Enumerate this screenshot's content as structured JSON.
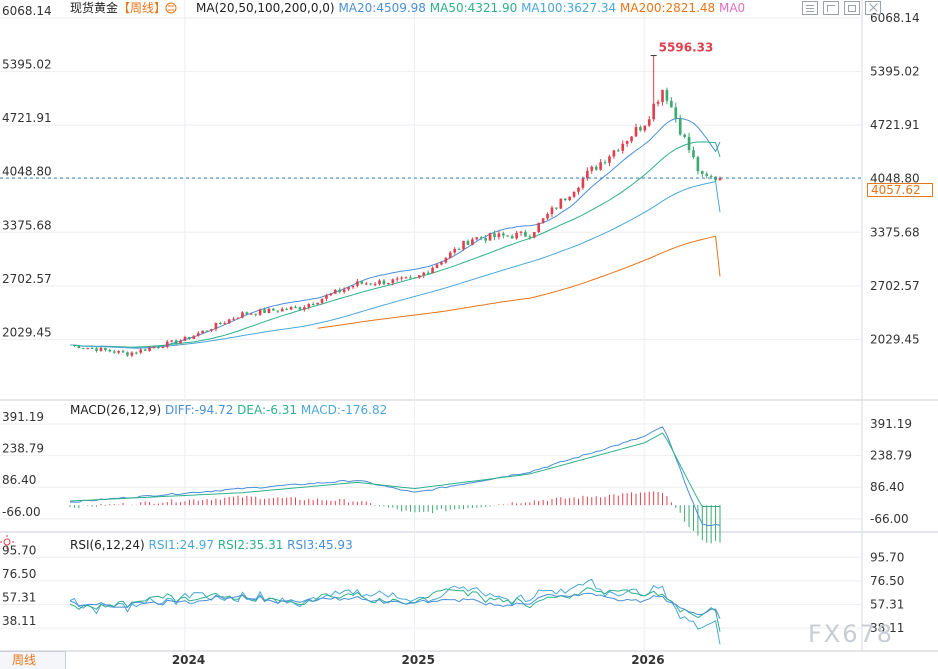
{
  "instrument": {
    "name": "现货黄金",
    "period": "【周线】"
  },
  "ma_header": {
    "label": "MA(20,50,100,200,0,0)",
    "items": [
      {
        "text": "MA20:4509.98",
        "color": "#4a8fd6"
      },
      {
        "text": "MA50:4321.90",
        "color": "#2eb08a"
      },
      {
        "text": "MA100:3627.34",
        "color": "#4aa8d8"
      },
      {
        "text": "MA200:2821.48",
        "color": "#e8751a"
      },
      {
        "text": "MA0",
        "color": "#e06fc0"
      }
    ]
  },
  "macd_header": {
    "label": "MACD(26,12,9)",
    "items": [
      {
        "text": "DIFF:-94.72",
        "color": "#4a8fd6"
      },
      {
        "text": "DEA:-6.31",
        "color": "#2eb08a"
      },
      {
        "text": "MACD:-176.82",
        "color": "#4aa8d8"
      }
    ]
  },
  "rsi_header": {
    "label": "RSI(6,12,24)",
    "items": [
      {
        "text": "RSI1:24.97",
        "color": "#4aa8d8"
      },
      {
        "text": "RSI2:35.31",
        "color": "#2eb08a"
      },
      {
        "text": "RSI3:45.93",
        "color": "#4a8fd6"
      }
    ]
  },
  "current_price": "4057.62",
  "peak_label": "5596.33",
  "bottom_tab": "周线",
  "watermark": "FX678",
  "icons": [
    "settings-icon",
    "reset-icon",
    "maximize-icon",
    "close-icon",
    "sun-icon"
  ],
  "colors": {
    "up": "#e0404e",
    "down": "#3caa6e",
    "accent": "#e8751a"
  },
  "chart_data": [
    {
      "type": "candlestick",
      "title": "现货黄金【周线】",
      "y_ticks": [
        "6068.14",
        "5395.02",
        "4721.91",
        "4048.80",
        "3375.68",
        "2702.57",
        "2029.45"
      ],
      "ylim": [
        1620,
        6068.14
      ],
      "x_ticks": [
        "2024",
        "2025",
        "2026"
      ],
      "grid": true,
      "key_points": [
        {
          "t": "2023-07",
          "close": 1960
        },
        {
          "t": "2023-10",
          "close": 1850
        },
        {
          "t": "2024-01",
          "close": 2030
        },
        {
          "t": "2024-04",
          "close": 2350
        },
        {
          "t": "2024-07",
          "close": 2430
        },
        {
          "t": "2024-10",
          "close": 2730
        },
        {
          "t": "2025-01",
          "close": 2780
        },
        {
          "t": "2025-04",
          "close": 3300
        },
        {
          "t": "2025-07",
          "close": 3350
        },
        {
          "t": "2025-10",
          "close": 4100
        },
        {
          "t": "2026-01",
          "close": 4750
        },
        {
          "t": "2026-02",
          "close": 5200
        },
        {
          "t": "2026-03",
          "close": 4600
        },
        {
          "t": "2026-04",
          "close": 4057.62
        }
      ],
      "peak": 5596.33,
      "last": 4057.62,
      "series": [
        {
          "name": "MA20",
          "value": 4509.98
        },
        {
          "name": "MA50",
          "value": 4321.9
        },
        {
          "name": "MA100",
          "value": 3627.34
        },
        {
          "name": "MA200",
          "value": 2821.48
        }
      ]
    },
    {
      "type": "line",
      "title": "MACD(26,12,9)",
      "y_ticks": [
        "391.19",
        "238.79",
        "86.40",
        "-66.00"
      ],
      "ylim": [
        -110,
        420
      ],
      "key_points": [
        {
          "t": "2023-07",
          "diff": 15,
          "dea": 20
        },
        {
          "t": "2024-04",
          "diff": 80,
          "dea": 60
        },
        {
          "t": "2024-10",
          "diff": 120,
          "dea": 110
        },
        {
          "t": "2025-01",
          "diff": 60,
          "dea": 80
        },
        {
          "t": "2025-07",
          "diff": 160,
          "dea": 150
        },
        {
          "t": "2026-01",
          "diff": 330,
          "dea": 300
        },
        {
          "t": "2026-02",
          "diff": 380,
          "dea": 350
        },
        {
          "t": "2026-04",
          "diff": -94.72,
          "dea": -6.31
        }
      ],
      "last": {
        "DIFF": -94.72,
        "DEA": -6.31,
        "MACD": -176.82
      }
    },
    {
      "type": "line",
      "title": "RSI(6,12,24)",
      "y_ticks": [
        "95.70",
        "76.50",
        "57.31",
        "38.11"
      ],
      "ylim": [
        22,
        100
      ],
      "last": {
        "RSI1": 24.97,
        "RSI2": 35.31,
        "RSI3": 45.93
      }
    }
  ]
}
